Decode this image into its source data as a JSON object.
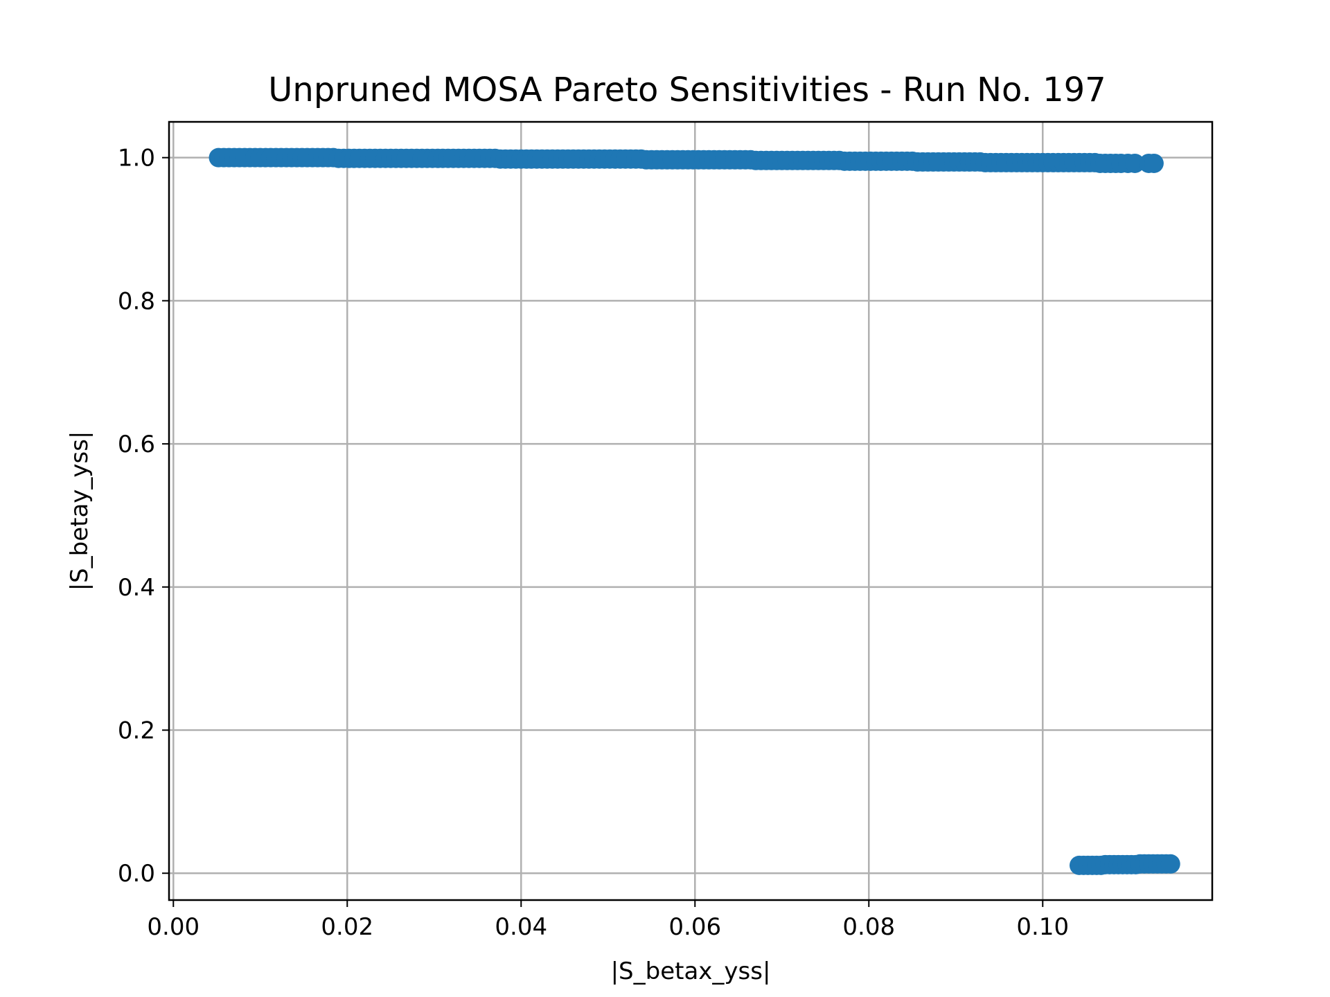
{
  "chart_data": {
    "type": "scatter",
    "title": "Unpruned MOSA Pareto Sensitivities - Run No. 197",
    "xlabel": "|S_betax_yss|",
    "ylabel": "|S_betay_yss|",
    "xlim": [
      -0.0005,
      0.1195
    ],
    "ylim": [
      -0.0375,
      1.05
    ],
    "xticks": [
      0.0,
      0.02,
      0.04,
      0.06,
      0.08,
      0.1
    ],
    "xtick_labels": [
      "0.00",
      "0.02",
      "0.04",
      "0.06",
      "0.08",
      "0.10"
    ],
    "yticks": [
      0.0,
      0.2,
      0.4,
      0.6,
      0.8,
      1.0
    ],
    "ytick_labels": [
      "0.0",
      "0.2",
      "0.4",
      "0.6",
      "0.8",
      "1.0"
    ],
    "grid": true,
    "marker_color": "#1f77b4",
    "series": [
      {
        "points": [
          [
            0.0052,
            1.0
          ],
          [
            0.0058,
            1.0
          ],
          [
            0.0064,
            1.0
          ],
          [
            0.007,
            1.0
          ],
          [
            0.0076,
            1.0
          ],
          [
            0.0082,
            1.0
          ],
          [
            0.0088,
            1.0
          ],
          [
            0.0094,
            1.0
          ],
          [
            0.01,
            1.0
          ],
          [
            0.0106,
            1.0
          ],
          [
            0.0112,
            1.0
          ],
          [
            0.0118,
            1.0
          ],
          [
            0.0124,
            1.0
          ],
          [
            0.013,
            1.0
          ],
          [
            0.0136,
            1.0
          ],
          [
            0.0142,
            1.0
          ],
          [
            0.0148,
            1.0
          ],
          [
            0.0154,
            1.0
          ],
          [
            0.016,
            1.0
          ],
          [
            0.0166,
            1.0
          ],
          [
            0.0172,
            1.0
          ],
          [
            0.0178,
            1.0
          ],
          [
            0.0184,
            1.0
          ],
          [
            0.019,
            0.999
          ],
          [
            0.0196,
            0.999
          ],
          [
            0.0202,
            0.999
          ],
          [
            0.0208,
            0.999
          ],
          [
            0.0214,
            0.999
          ],
          [
            0.022,
            0.999
          ],
          [
            0.0226,
            0.999
          ],
          [
            0.0232,
            0.999
          ],
          [
            0.0238,
            0.999
          ],
          [
            0.0244,
            0.999
          ],
          [
            0.025,
            0.999
          ],
          [
            0.0256,
            0.999
          ],
          [
            0.0262,
            0.999
          ],
          [
            0.0268,
            0.999
          ],
          [
            0.0274,
            0.999
          ],
          [
            0.028,
            0.999
          ],
          [
            0.0286,
            0.999
          ],
          [
            0.0292,
            0.999
          ],
          [
            0.0298,
            0.999
          ],
          [
            0.0304,
            0.999
          ],
          [
            0.031,
            0.999
          ],
          [
            0.0316,
            0.999
          ],
          [
            0.0322,
            0.999
          ],
          [
            0.0328,
            0.999
          ],
          [
            0.0334,
            0.999
          ],
          [
            0.034,
            0.999
          ],
          [
            0.0346,
            0.999
          ],
          [
            0.0352,
            0.999
          ],
          [
            0.0358,
            0.999
          ],
          [
            0.0364,
            0.999
          ],
          [
            0.037,
            0.999
          ],
          [
            0.0376,
            0.998
          ],
          [
            0.0382,
            0.998
          ],
          [
            0.0388,
            0.998
          ],
          [
            0.0394,
            0.998
          ],
          [
            0.04,
            0.998
          ],
          [
            0.0406,
            0.998
          ],
          [
            0.0412,
            0.998
          ],
          [
            0.0418,
            0.998
          ],
          [
            0.0424,
            0.998
          ],
          [
            0.043,
            0.998
          ],
          [
            0.0436,
            0.998
          ],
          [
            0.0442,
            0.998
          ],
          [
            0.0448,
            0.998
          ],
          [
            0.0454,
            0.998
          ],
          [
            0.046,
            0.998
          ],
          [
            0.0466,
            0.998
          ],
          [
            0.0472,
            0.998
          ],
          [
            0.0478,
            0.998
          ],
          [
            0.0484,
            0.998
          ],
          [
            0.049,
            0.998
          ],
          [
            0.0496,
            0.998
          ],
          [
            0.0502,
            0.998
          ],
          [
            0.0508,
            0.998
          ],
          [
            0.0514,
            0.998
          ],
          [
            0.052,
            0.998
          ],
          [
            0.0526,
            0.998
          ],
          [
            0.0532,
            0.998
          ],
          [
            0.0538,
            0.998
          ],
          [
            0.0544,
            0.997
          ],
          [
            0.055,
            0.997
          ],
          [
            0.0556,
            0.997
          ],
          [
            0.0562,
            0.997
          ],
          [
            0.0568,
            0.997
          ],
          [
            0.0574,
            0.997
          ],
          [
            0.058,
            0.997
          ],
          [
            0.0586,
            0.997
          ],
          [
            0.0592,
            0.997
          ],
          [
            0.0598,
            0.997
          ],
          [
            0.0604,
            0.997
          ],
          [
            0.061,
            0.997
          ],
          [
            0.0616,
            0.997
          ],
          [
            0.0622,
            0.997
          ],
          [
            0.0628,
            0.997
          ],
          [
            0.0634,
            0.997
          ],
          [
            0.064,
            0.997
          ],
          [
            0.0646,
            0.997
          ],
          [
            0.0652,
            0.997
          ],
          [
            0.0658,
            0.997
          ],
          [
            0.0664,
            0.997
          ],
          [
            0.067,
            0.996
          ],
          [
            0.0676,
            0.996
          ],
          [
            0.0682,
            0.996
          ],
          [
            0.0688,
            0.996
          ],
          [
            0.0694,
            0.996
          ],
          [
            0.07,
            0.996
          ],
          [
            0.0706,
            0.996
          ],
          [
            0.0712,
            0.996
          ],
          [
            0.0718,
            0.996
          ],
          [
            0.0724,
            0.996
          ],
          [
            0.073,
            0.996
          ],
          [
            0.0736,
            0.996
          ],
          [
            0.0742,
            0.996
          ],
          [
            0.0748,
            0.996
          ],
          [
            0.0754,
            0.996
          ],
          [
            0.076,
            0.996
          ],
          [
            0.0766,
            0.996
          ],
          [
            0.0772,
            0.995
          ],
          [
            0.0778,
            0.995
          ],
          [
            0.0784,
            0.995
          ],
          [
            0.079,
            0.995
          ],
          [
            0.0796,
            0.995
          ],
          [
            0.0802,
            0.995
          ],
          [
            0.0808,
            0.995
          ],
          [
            0.0814,
            0.995
          ],
          [
            0.082,
            0.995
          ],
          [
            0.0826,
            0.995
          ],
          [
            0.0832,
            0.995
          ],
          [
            0.0838,
            0.995
          ],
          [
            0.0844,
            0.995
          ],
          [
            0.085,
            0.995
          ],
          [
            0.0856,
            0.994
          ],
          [
            0.0862,
            0.994
          ],
          [
            0.0868,
            0.994
          ],
          [
            0.0874,
            0.994
          ],
          [
            0.088,
            0.994
          ],
          [
            0.0886,
            0.994
          ],
          [
            0.0892,
            0.994
          ],
          [
            0.0898,
            0.994
          ],
          [
            0.0904,
            0.994
          ],
          [
            0.091,
            0.994
          ],
          [
            0.0916,
            0.994
          ],
          [
            0.0922,
            0.994
          ],
          [
            0.0928,
            0.994
          ],
          [
            0.0934,
            0.993
          ],
          [
            0.094,
            0.993
          ],
          [
            0.0946,
            0.993
          ],
          [
            0.0952,
            0.993
          ],
          [
            0.0958,
            0.993
          ],
          [
            0.0964,
            0.993
          ],
          [
            0.097,
            0.993
          ],
          [
            0.0976,
            0.993
          ],
          [
            0.0982,
            0.993
          ],
          [
            0.0988,
            0.993
          ],
          [
            0.0994,
            0.993
          ],
          [
            0.1,
            0.993
          ],
          [
            0.1006,
            0.993
          ],
          [
            0.1012,
            0.993
          ],
          [
            0.1018,
            0.993
          ],
          [
            0.1024,
            0.993
          ],
          [
            0.103,
            0.993
          ],
          [
            0.1036,
            0.993
          ],
          [
            0.1042,
            0.993
          ],
          [
            0.1048,
            0.993
          ],
          [
            0.1054,
            0.993
          ],
          [
            0.106,
            0.993
          ],
          [
            0.1066,
            0.992
          ],
          [
            0.1072,
            0.992
          ],
          [
            0.1078,
            0.992
          ],
          [
            0.1084,
            0.992
          ],
          [
            0.109,
            0.992
          ],
          [
            0.1098,
            0.992
          ],
          [
            0.1106,
            0.992
          ],
          [
            0.1122,
            0.992
          ],
          [
            0.1128,
            0.992
          ],
          [
            0.1042,
            0.011
          ],
          [
            0.1047,
            0.011
          ],
          [
            0.1052,
            0.011
          ],
          [
            0.1057,
            0.011
          ],
          [
            0.1062,
            0.011
          ],
          [
            0.1067,
            0.011
          ],
          [
            0.1072,
            0.012
          ],
          [
            0.1077,
            0.012
          ],
          [
            0.1082,
            0.012
          ],
          [
            0.1087,
            0.012
          ],
          [
            0.1092,
            0.012
          ],
          [
            0.1097,
            0.012
          ],
          [
            0.1102,
            0.012
          ],
          [
            0.1107,
            0.012
          ],
          [
            0.1112,
            0.013
          ],
          [
            0.1117,
            0.013
          ],
          [
            0.1122,
            0.013
          ],
          [
            0.1127,
            0.013
          ],
          [
            0.1132,
            0.013
          ],
          [
            0.1137,
            0.013
          ],
          [
            0.1142,
            0.013
          ],
          [
            0.1147,
            0.013
          ]
        ]
      }
    ]
  }
}
